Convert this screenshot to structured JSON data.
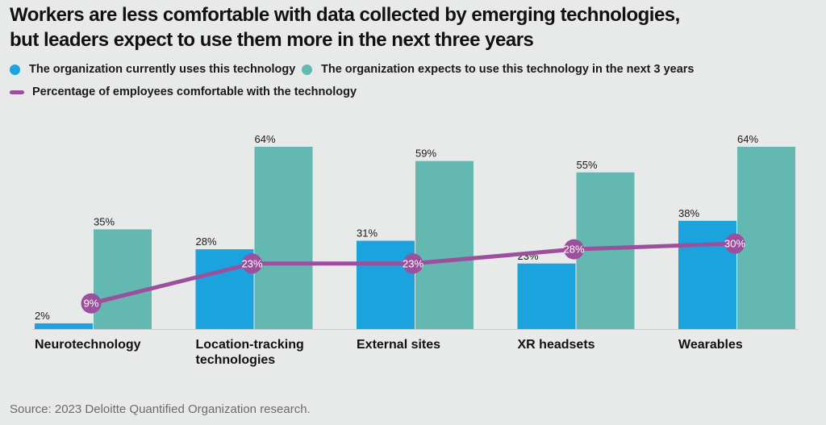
{
  "title_lines": [
    "Workers are less comfortable with data collected by emerging technologies,",
    "but leaders expect to use them more in the next three years"
  ],
  "legend": {
    "current": "The organization currently uses this technology",
    "expected": "The organization expects to use this technology in the next 3 years",
    "comfort": "Percentage of employees comfortable with the technology"
  },
  "source": "Source: 2023 Deloitte Quantified Organization research.",
  "colors": {
    "current": "#1aa3dd",
    "expected": "#63b8b2",
    "comfort": "#9b4f9c",
    "background": "#e8e9e9"
  },
  "chart_data": {
    "type": "bar",
    "categories": [
      [
        "Neurotechnology"
      ],
      [
        "Location-tracking",
        "technologies"
      ],
      [
        "External sites"
      ],
      [
        "XR headsets"
      ],
      [
        "Wearables"
      ]
    ],
    "series": [
      {
        "name": "The organization currently uses this technology",
        "type": "bar",
        "values": [
          2,
          28,
          31,
          23,
          38
        ],
        "labels": [
          "2%",
          "28%",
          "31%",
          "23%",
          "38%"
        ]
      },
      {
        "name": "The organization expects to use this technology in the next 3 years",
        "type": "bar",
        "values": [
          35,
          64,
          59,
          55,
          64
        ],
        "labels": [
          "35%",
          "64%",
          "59%",
          "55%",
          "64%"
        ]
      },
      {
        "name": "Percentage of employees comfortable with the technology",
        "type": "line",
        "values": [
          9,
          23,
          23,
          28,
          30
        ],
        "labels": [
          "9%",
          "23%",
          "23%",
          "28%",
          "30%"
        ]
      }
    ],
    "ylim": [
      0,
      64
    ],
    "grid": false,
    "legend_position": "top-left"
  }
}
